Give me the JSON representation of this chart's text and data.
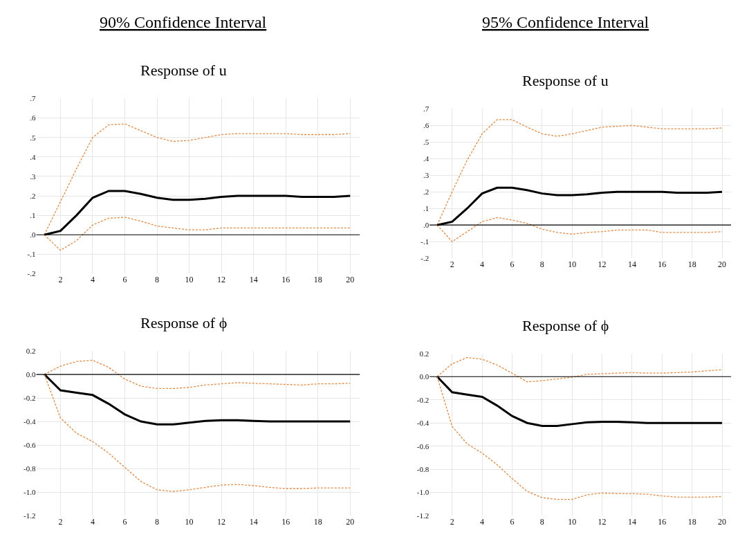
{
  "chart_data": [
    {
      "type": "line",
      "title": "Response of u",
      "annotations": [
        "90% Confidence Interval"
      ],
      "x": [
        1,
        2,
        3,
        4,
        5,
        6,
        7,
        8,
        9,
        10,
        11,
        12,
        13,
        14,
        15,
        16,
        17,
        18,
        19,
        20
      ],
      "xlim": [
        0.5,
        20.6
      ],
      "xticks": [
        2,
        4,
        6,
        8,
        10,
        12,
        14,
        16,
        18,
        20
      ],
      "ylim": [
        -0.2,
        0.7
      ],
      "yticks": [
        {
          "value": 0.7,
          "label": ".7"
        },
        {
          "value": 0.6,
          "label": ".6"
        },
        {
          "value": 0.5,
          "label": ".5"
        },
        {
          "value": 0.4,
          "label": ".4"
        },
        {
          "value": 0.3,
          "label": ".3"
        },
        {
          "value": 0.2,
          "label": ".2"
        },
        {
          "value": 0.1,
          "label": ".1"
        },
        {
          "value": 0,
          "label": ".0"
        },
        {
          "value": -0.1,
          "label": "-.1"
        },
        {
          "value": -0.2,
          "label": "-.2"
        }
      ],
      "grid": true,
      "ref_lines": [
        {
          "axis": "y",
          "value": 0,
          "color": "#000000"
        }
      ],
      "series": [
        {
          "color": "#e08a45",
          "line_style": "dashed",
          "values": [
            0,
            0.17,
            0.34,
            0.5,
            0.565,
            0.57,
            0.535,
            0.5,
            0.48,
            0.485,
            0.5,
            0.515,
            0.52,
            0.52,
            0.52,
            0.52,
            0.515,
            0.515,
            0.515,
            0.52
          ]
        },
        {
          "color": "#000000",
          "line_style": "solid",
          "values": [
            0,
            0.02,
            0.1,
            0.19,
            0.225,
            0.225,
            0.21,
            0.19,
            0.18,
            0.18,
            0.185,
            0.195,
            0.2,
            0.2,
            0.2,
            0.2,
            0.195,
            0.195,
            0.195,
            0.2
          ]
        },
        {
          "color": "#e08a45",
          "line_style": "dashed",
          "values": [
            0,
            -0.08,
            -0.03,
            0.05,
            0.085,
            0.09,
            0.07,
            0.045,
            0.035,
            0.025,
            0.025,
            0.035,
            0.035,
            0.035,
            0.035,
            0.035,
            0.035,
            0.035,
            0.035,
            0.035
          ]
        }
      ]
    },
    {
      "type": "line",
      "title": "Response of u",
      "annotations": [
        "95% Confidence Interval"
      ],
      "x": [
        1,
        2,
        3,
        4,
        5,
        6,
        7,
        8,
        9,
        10,
        11,
        12,
        13,
        14,
        15,
        16,
        17,
        18,
        19,
        20
      ],
      "xlim": [
        0.5,
        20.6
      ],
      "xticks": [
        2,
        4,
        6,
        8,
        10,
        12,
        14,
        16,
        18,
        20
      ],
      "ylim": [
        -0.2,
        0.7
      ],
      "yticks": [
        {
          "value": 0.7,
          "label": ".7"
        },
        {
          "value": 0.6,
          "label": ".6"
        },
        {
          "value": 0.5,
          "label": ".5"
        },
        {
          "value": 0.4,
          "label": ".4"
        },
        {
          "value": 0.3,
          "label": ".3"
        },
        {
          "value": 0.2,
          "label": ".2"
        },
        {
          "value": 0.1,
          "label": ".1"
        },
        {
          "value": 0,
          "label": ".0"
        },
        {
          "value": -0.1,
          "label": "-.1"
        },
        {
          "value": -0.2,
          "label": "-.2"
        }
      ],
      "grid": true,
      "ref_lines": [
        {
          "axis": "y",
          "value": 0,
          "color": "#000000"
        }
      ],
      "series": [
        {
          "color": "#e08a45",
          "line_style": "dashed",
          "values": [
            0,
            0.2,
            0.39,
            0.55,
            0.635,
            0.635,
            0.59,
            0.55,
            0.535,
            0.55,
            0.57,
            0.59,
            0.595,
            0.6,
            0.59,
            0.58,
            0.58,
            0.58,
            0.58,
            0.585
          ]
        },
        {
          "color": "#000000",
          "line_style": "solid",
          "values": [
            0,
            0.02,
            0.1,
            0.19,
            0.225,
            0.225,
            0.21,
            0.19,
            0.18,
            0.18,
            0.185,
            0.195,
            0.2,
            0.2,
            0.2,
            0.2,
            0.195,
            0.195,
            0.195,
            0.2
          ]
        },
        {
          "color": "#e08a45",
          "line_style": "dashed",
          "values": [
            0,
            -0.1,
            -0.04,
            0.02,
            0.045,
            0.03,
            0.01,
            -0.025,
            -0.045,
            -0.055,
            -0.045,
            -0.04,
            -0.03,
            -0.03,
            -0.03,
            -0.045,
            -0.045,
            -0.045,
            -0.045,
            -0.04
          ]
        }
      ]
    },
    {
      "type": "line",
      "title": "Response of ϕ",
      "x": [
        1,
        2,
        3,
        4,
        5,
        6,
        7,
        8,
        9,
        10,
        11,
        12,
        13,
        14,
        15,
        16,
        17,
        18,
        19,
        20
      ],
      "xlim": [
        0.5,
        20.6
      ],
      "xticks": [
        2,
        4,
        6,
        8,
        10,
        12,
        14,
        16,
        18,
        20
      ],
      "ylim": [
        -1.2,
        0.2
      ],
      "yticks": [
        {
          "value": 0.2,
          "label": "0.2"
        },
        {
          "value": 0,
          "label": "0.0"
        },
        {
          "value": -0.2,
          "label": "-0.2"
        },
        {
          "value": -0.4,
          "label": "-0.4"
        },
        {
          "value": -0.6,
          "label": "-0.6"
        },
        {
          "value": -0.8,
          "label": "-0.8"
        },
        {
          "value": -1.0,
          "label": "-1.0"
        },
        {
          "value": -1.2,
          "label": "-1.2"
        }
      ],
      "grid": true,
      "ref_lines": [
        {
          "axis": "y",
          "value": 0,
          "color": "#000000"
        }
      ],
      "series": [
        {
          "color": "#e08a45",
          "line_style": "dashed",
          "values": [
            0,
            0.07,
            0.11,
            0.12,
            0.06,
            -0.04,
            -0.1,
            -0.12,
            -0.12,
            -0.11,
            -0.09,
            -0.08,
            -0.07,
            -0.075,
            -0.08,
            -0.085,
            -0.09,
            -0.08,
            -0.08,
            -0.075
          ]
        },
        {
          "color": "#000000",
          "line_style": "solid",
          "values": [
            0,
            -0.135,
            -0.155,
            -0.175,
            -0.25,
            -0.34,
            -0.4,
            -0.425,
            -0.425,
            -0.41,
            -0.395,
            -0.39,
            -0.39,
            -0.395,
            -0.4,
            -0.4,
            -0.4,
            -0.4,
            -0.4,
            -0.4
          ]
        },
        {
          "color": "#e08a45",
          "line_style": "dashed",
          "values": [
            0,
            -0.37,
            -0.5,
            -0.57,
            -0.67,
            -0.79,
            -0.91,
            -0.98,
            -0.995,
            -0.98,
            -0.96,
            -0.94,
            -0.935,
            -0.945,
            -0.96,
            -0.97,
            -0.97,
            -0.965,
            -0.965,
            -0.965
          ]
        }
      ]
    },
    {
      "type": "line",
      "title": "Response of ϕ",
      "x": [
        1,
        2,
        3,
        4,
        5,
        6,
        7,
        8,
        9,
        10,
        11,
        12,
        13,
        14,
        15,
        16,
        17,
        18,
        19,
        20
      ],
      "xlim": [
        0.5,
        20.6
      ],
      "xticks": [
        2,
        4,
        6,
        8,
        10,
        12,
        14,
        16,
        18,
        20
      ],
      "ylim": [
        -1.2,
        0.2
      ],
      "yticks": [
        {
          "value": 0.2,
          "label": "0.2"
        },
        {
          "value": 0,
          "label": "0.0"
        },
        {
          "value": -0.2,
          "label": "-0.2"
        },
        {
          "value": -0.4,
          "label": "-0.4"
        },
        {
          "value": -0.6,
          "label": "-0.6"
        },
        {
          "value": -0.8,
          "label": "-0.8"
        },
        {
          "value": -1.0,
          "label": "-1.0"
        },
        {
          "value": -1.2,
          "label": "-1.2"
        }
      ],
      "grid": true,
      "ref_lines": [
        {
          "axis": "y",
          "value": 0,
          "color": "#000000"
        }
      ],
      "series": [
        {
          "color": "#e08a45",
          "line_style": "dashed",
          "values": [
            0,
            0.11,
            0.165,
            0.15,
            0.1,
            0.03,
            -0.045,
            -0.035,
            -0.02,
            -0.005,
            0.02,
            0.025,
            0.03,
            0.035,
            0.03,
            0.03,
            0.035,
            0.04,
            0.05,
            0.06
          ]
        },
        {
          "color": "#000000",
          "line_style": "solid",
          "values": [
            0,
            -0.135,
            -0.155,
            -0.175,
            -0.25,
            -0.34,
            -0.4,
            -0.425,
            -0.425,
            -0.41,
            -0.395,
            -0.39,
            -0.39,
            -0.395,
            -0.4,
            -0.4,
            -0.4,
            -0.4,
            -0.4,
            -0.4
          ]
        },
        {
          "color": "#e08a45",
          "line_style": "dashed",
          "values": [
            0,
            -0.43,
            -0.58,
            -0.66,
            -0.76,
            -0.88,
            -0.99,
            -1.045,
            -1.06,
            -1.06,
            -1.02,
            -1.005,
            -1.01,
            -1.01,
            -1.015,
            -1.03,
            -1.04,
            -1.04,
            -1.04,
            -1.035
          ]
        }
      ]
    }
  ]
}
